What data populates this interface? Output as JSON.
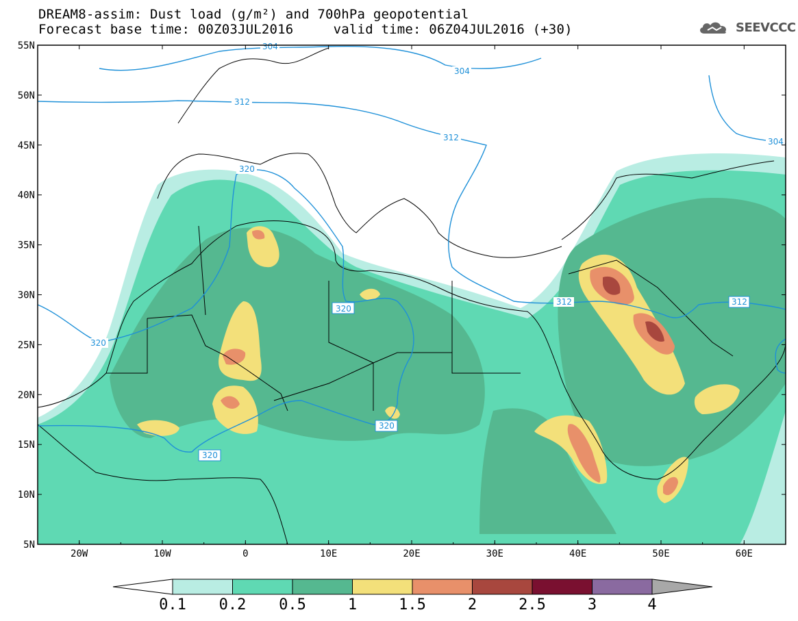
{
  "title": {
    "line1": "DREAM8-assim: Dust load (g/m²) and 700hPa geopotential",
    "line2": "Forecast base time: 00Z03JUL2016     valid time: 06Z04JUL2016 (+30)"
  },
  "logo": {
    "text": "SEEVCCC",
    "icon": "cloud-icon"
  },
  "axes": {
    "lon_ticks": [
      "20W",
      "10W",
      "0",
      "10E",
      "20E",
      "30E",
      "40E",
      "50E",
      "60E"
    ],
    "lat_ticks": [
      "55N",
      "50N",
      "45N",
      "40N",
      "35N",
      "30N",
      "25N",
      "20N",
      "15N",
      "10N",
      "5N"
    ],
    "lon_range": [
      -25,
      65
    ],
    "lat_range": [
      5,
      55
    ]
  },
  "colorbar": {
    "labels": [
      "0.1",
      "0.2",
      "0.5",
      "1",
      "1.5",
      "2",
      "2.5",
      "3",
      "4"
    ],
    "colors": [
      "#ffffff",
      "#b9ede3",
      "#5fd9b3",
      "#55b890",
      "#f3e07a",
      "#e8906a",
      "#a8473e",
      "#7a1030",
      "#8a6aa0",
      "#a8a8a8"
    ]
  },
  "contours": {
    "color": "#1e90d8",
    "labels": [
      "304",
      "304",
      "304",
      "312",
      "312",
      "312",
      "312",
      "320",
      "320",
      "320",
      "320",
      "320"
    ]
  }
}
